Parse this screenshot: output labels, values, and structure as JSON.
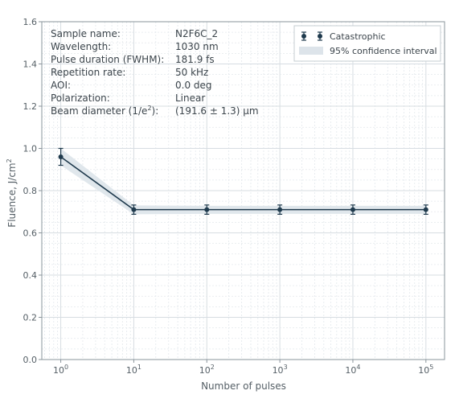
{
  "chart_data": {
    "type": "line",
    "xlabel": "Number of pulses",
    "ylabel_main": "Fluence, J/cm",
    "ylabel_sup": "2",
    "x_scale": "log",
    "xlim": [
      0.55,
      180000
    ],
    "ylim": [
      0.0,
      1.6
    ],
    "grid": true,
    "x_ticks": [
      {
        "value": 1,
        "base": "10",
        "exp": "0"
      },
      {
        "value": 10,
        "base": "10",
        "exp": "1"
      },
      {
        "value": 100,
        "base": "10",
        "exp": "2"
      },
      {
        "value": 1000,
        "base": "10",
        "exp": "3"
      },
      {
        "value": 10000,
        "base": "10",
        "exp": "4"
      },
      {
        "value": 100000,
        "base": "10",
        "exp": "5"
      }
    ],
    "y_ticks": [
      "0.0",
      "0.2",
      "0.4",
      "0.6",
      "0.8",
      "1.0",
      "1.2",
      "1.4",
      "1.6"
    ],
    "series": [
      {
        "name": "Catastrophic",
        "color": "#1f3a4d",
        "x": [
          1,
          10,
          100,
          1000,
          10000,
          100000
        ],
        "y": [
          0.96,
          0.71,
          0.71,
          0.71,
          0.71,
          0.71
        ],
        "err": [
          0.04,
          0.022,
          0.022,
          0.022,
          0.022,
          0.022
        ]
      }
    ],
    "confidence_band": {
      "name": "95% confidence interval",
      "color": "#dde4ea",
      "lower": [
        0.92,
        0.688,
        0.69,
        0.69,
        0.69,
        0.69
      ],
      "upper": [
        1.0,
        0.73,
        0.728,
        0.728,
        0.728,
        0.728
      ]
    },
    "legend_position": "top-right",
    "info": [
      {
        "label": "Sample name:",
        "value": "N2F6C_2"
      },
      {
        "label": "Wavelength:",
        "value": "1030 nm"
      },
      {
        "label": "Pulse duration (FWHM):",
        "value": "181.9 fs"
      },
      {
        "label": "Repetition rate:",
        "value": "50 kHz"
      },
      {
        "label": "AOI:",
        "value": "0.0 deg"
      },
      {
        "label": "Polarization:",
        "value": "Linear"
      }
    ],
    "beam": {
      "label_pre": "Beam diameter (1/e",
      "label_sup": "2",
      "label_post": "):",
      "value": "(191.6 ± 1.3) μm"
    }
  }
}
